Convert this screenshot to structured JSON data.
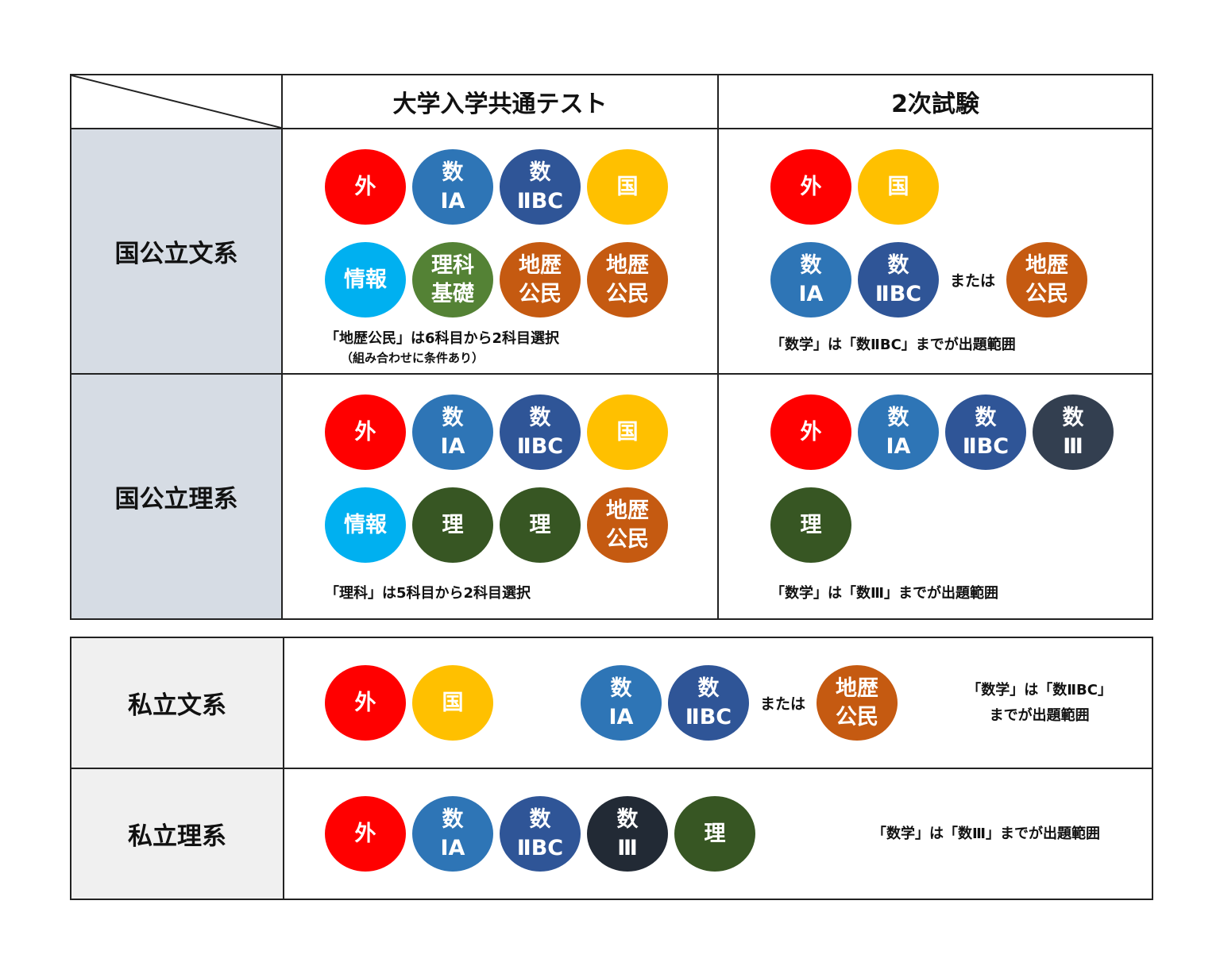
{
  "header": {
    "common_test": "大学入学共通テスト",
    "second_exam": "2次試験"
  },
  "rows": [
    {
      "label": "国公立文系",
      "common": {
        "lines": [
          [
            {
              "text": [
                "外"
              ],
              "color": "#ff0000"
            },
            {
              "text": [
                "数",
                "ⅠA"
              ],
              "color": "#2e75b6"
            },
            {
              "text": [
                "数",
                "ⅡBC"
              ],
              "color": "#2f5597"
            },
            {
              "text": [
                "国"
              ],
              "color": "#ffc000"
            }
          ],
          [
            {
              "text": [
                "情報"
              ],
              "color": "#00b0f0"
            },
            {
              "text": [
                "理科",
                "基礎"
              ],
              "color": "#548235"
            },
            {
              "text": [
                "地歴",
                "公民"
              ],
              "color": "#c55a11"
            },
            {
              "text": [
                "地歴",
                "公民"
              ],
              "color": "#c55a11"
            }
          ]
        ],
        "notes": [
          "「地歴公民」は6科目から2科目選択",
          "（組み合わせに条件あり）"
        ]
      },
      "second": {
        "lines": [
          [
            {
              "text": [
                "外"
              ],
              "color": "#ff0000"
            },
            {
              "text": [
                "国"
              ],
              "color": "#ffc000"
            }
          ],
          [
            {
              "text": [
                "数",
                "ⅠA"
              ],
              "color": "#2e75b6"
            },
            {
              "text": [
                "数",
                "ⅡBC"
              ],
              "color": "#2f5597"
            },
            {
              "text": [
                "または"
              ]
            },
            {
              "text": [
                "地歴",
                "公民"
              ],
              "color": "#c55a11"
            }
          ]
        ],
        "notes": [
          "「数学」は「数ⅡBC」までが出題範囲"
        ]
      }
    },
    {
      "label": "国公立理系",
      "common": {
        "lines": [
          [
            {
              "text": [
                "外"
              ],
              "color": "#ff0000"
            },
            {
              "text": [
                "数",
                "ⅠA"
              ],
              "color": "#2e75b6"
            },
            {
              "text": [
                "数",
                "ⅡBC"
              ],
              "color": "#2f5597"
            },
            {
              "text": [
                "国"
              ],
              "color": "#ffc000"
            }
          ],
          [
            {
              "text": [
                "情報"
              ],
              "color": "#00b0f0"
            },
            {
              "text": [
                "理"
              ],
              "color": "#375623"
            },
            {
              "text": [
                "理"
              ],
              "color": "#375623"
            },
            {
              "text": [
                "地歴",
                "公民"
              ],
              "color": "#c55a11"
            }
          ]
        ],
        "notes": [
          "「理科」は5科目から2科目選択"
        ]
      },
      "second": {
        "lines": [
          [
            {
              "text": [
                "外"
              ],
              "color": "#ff0000"
            },
            {
              "text": [
                "数",
                "ⅠA"
              ],
              "color": "#2e75b6"
            },
            {
              "text": [
                "数",
                "ⅡBC"
              ],
              "color": "#2f5597"
            },
            {
              "text": [
                "数",
                "Ⅲ"
              ],
              "color": "#333f50"
            }
          ],
          [
            {
              "text": [
                "理"
              ],
              "color": "#375623"
            }
          ]
        ],
        "notes": [
          "「数学」は「数Ⅲ」までが出題範囲"
        ]
      }
    }
  ],
  "private_rows": [
    {
      "label": "私立文系",
      "groups": [
        [
          {
            "text": [
              "外"
            ],
            "color": "#ff0000"
          },
          {
            "text": [
              "国"
            ],
            "color": "#ffc000"
          }
        ],
        [
          {
            "text": [
              "数",
              "ⅠA"
            ],
            "color": "#2e75b6"
          },
          {
            "text": [
              "数",
              "ⅡBC"
            ],
            "color": "#2f5597"
          },
          {
            "text": [
              "または"
            ]
          },
          {
            "text": [
              "地歴",
              "公民"
            ],
            "color": "#c55a11"
          }
        ]
      ],
      "notes": [
        "「数学」は「数ⅡBC」",
        "までが出題範囲"
      ]
    },
    {
      "label": "私立理系",
      "groups": [
        [
          {
            "text": [
              "外"
            ],
            "color": "#ff0000"
          },
          {
            "text": [
              "数",
              "ⅠA"
            ],
            "color": "#2e75b6"
          },
          {
            "text": [
              "数",
              "ⅡBC"
            ],
            "color": "#2f5597"
          },
          {
            "text": [
              "数",
              "Ⅲ"
            ],
            "color": "#222a35"
          },
          {
            "text": [
              "理"
            ],
            "color": "#375623"
          }
        ]
      ],
      "notes": [
        "「数学」は「数Ⅲ」までが出題範囲"
      ]
    }
  ]
}
